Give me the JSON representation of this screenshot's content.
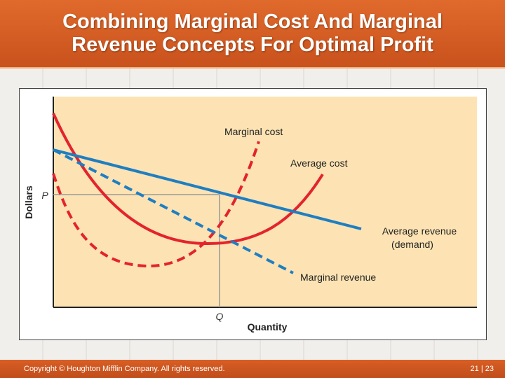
{
  "slide": {
    "title_line1": "Combining Marginal Cost And Marginal",
    "title_line2": "Revenue Concepts For Optimal Profit"
  },
  "figure": {
    "y_axis_label": "Dollars",
    "x_axis_label": "Quantity",
    "price_label": "P",
    "quantity_label": "Q",
    "curves": {
      "marginal_cost": "Marginal cost",
      "average_cost": "Average cost",
      "average_revenue_line1": "Average revenue",
      "average_revenue_line2": "(demand)",
      "marginal_revenue": "Marginal revenue"
    },
    "colors": {
      "plot_background": "#fde3b3",
      "cost_curves": "#e3232e",
      "revenue_curves": "#1f7ec2",
      "guide_lines": "#9a9a9a"
    }
  },
  "footer": {
    "copyright": "Copyright © Houghton Mifflin Company.  All rights reserved.",
    "page": "21 | 23"
  }
}
